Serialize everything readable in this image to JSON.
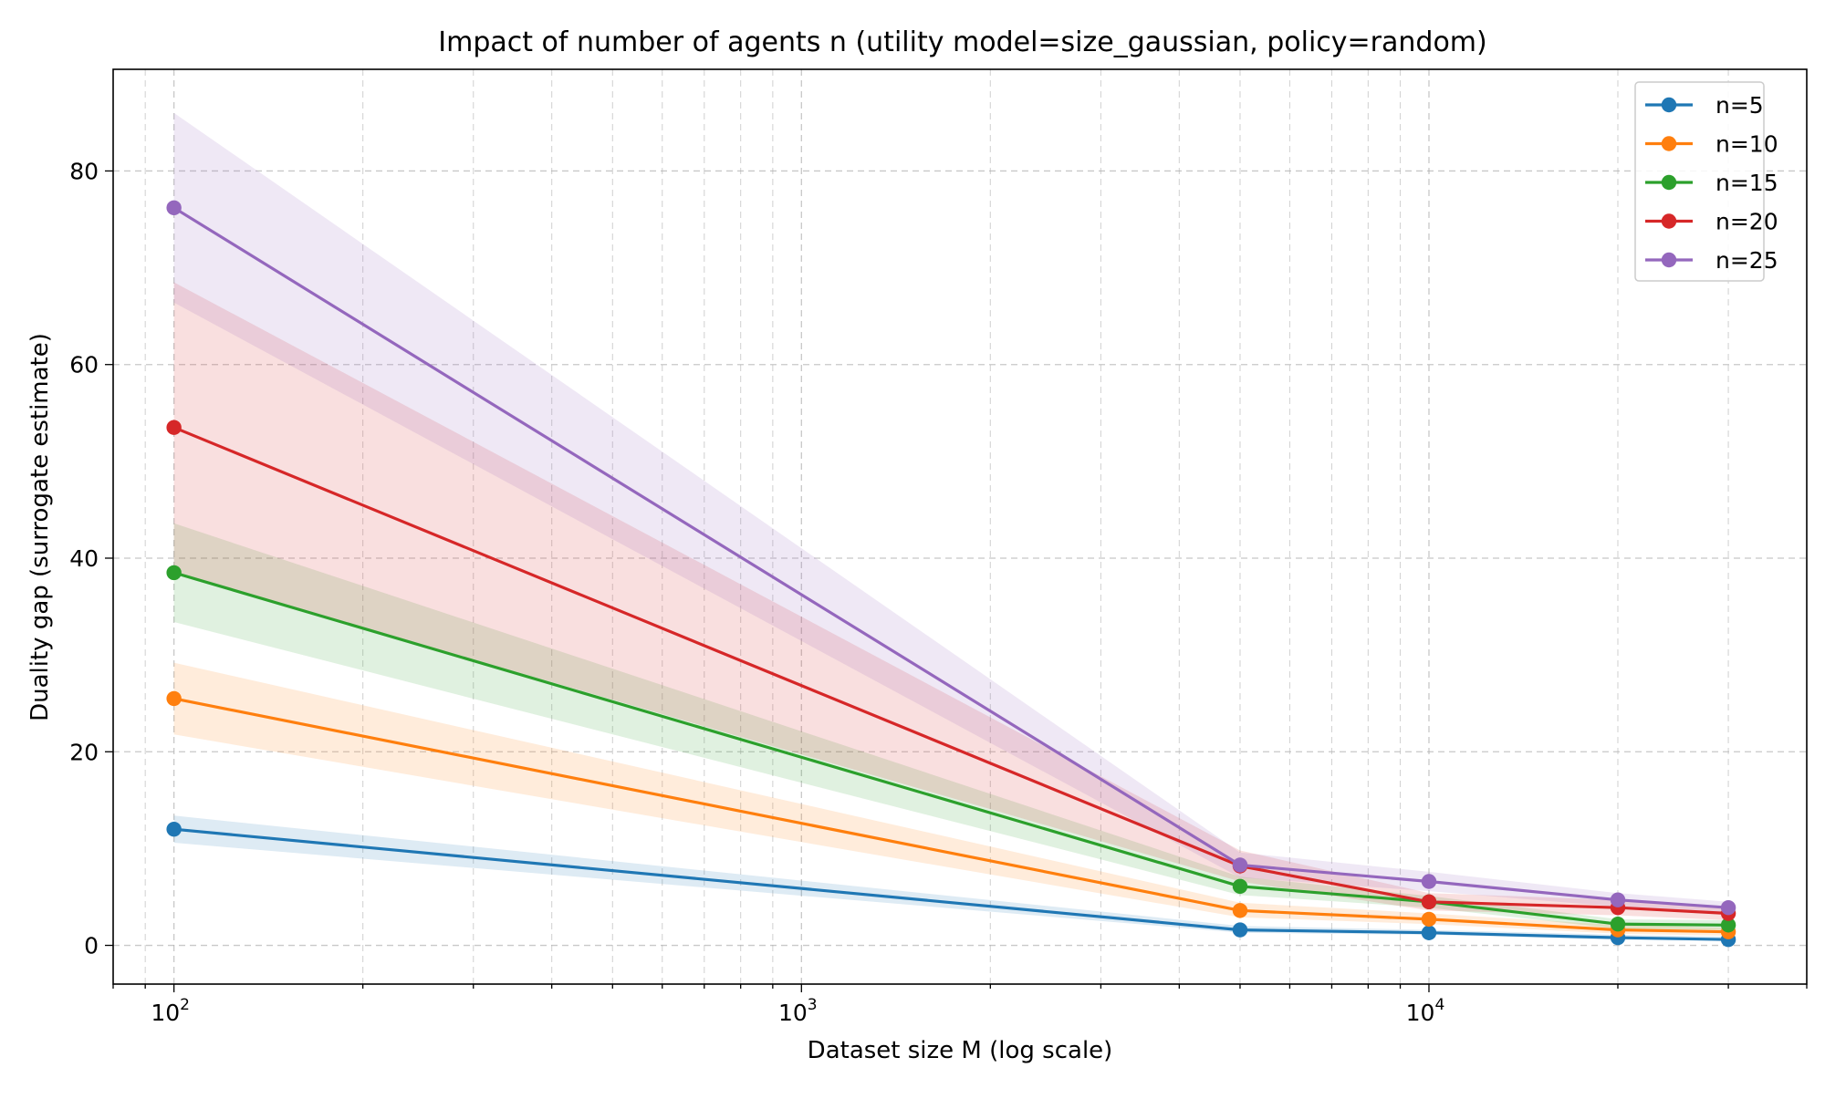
{
  "chart_data": {
    "type": "line",
    "title": "Impact of number of agents n (utility model=size_gaussian, policy=random)",
    "xlabel": "Dataset size M (log scale)",
    "ylabel": "Duality gap (surrogate estimate)",
    "xscale": "log",
    "xlim": [
      80,
      40000
    ],
    "ylim": [
      -4,
      90.5
    ],
    "x": [
      100,
      5000,
      10000,
      20000,
      30000
    ],
    "x_ticks": [
      {
        "value": 100,
        "base": "10",
        "exp": "2"
      },
      {
        "value": 1000,
        "base": "10",
        "exp": "3"
      },
      {
        "value": 10000,
        "base": "10",
        "exp": "4"
      }
    ],
    "y_ticks": [
      0,
      20,
      40,
      60,
      80
    ],
    "y_tick_labels": [
      "0",
      "20",
      "40",
      "60",
      "80"
    ],
    "grid": true,
    "legend_position": "top-right",
    "series": [
      {
        "name": "n=5",
        "color": "#1f77b4",
        "values": [
          12.0,
          1.6,
          1.3,
          0.8,
          0.6
        ],
        "lower": [
          10.6,
          1.3,
          1.1,
          0.6,
          0.5
        ],
        "upper": [
          13.4,
          2.0,
          1.6,
          1.1,
          0.9
        ]
      },
      {
        "name": "n=10",
        "color": "#ff7f0e",
        "values": [
          25.5,
          3.6,
          2.7,
          1.6,
          1.4
        ],
        "lower": [
          21.8,
          2.9,
          2.2,
          1.2,
          1.0
        ],
        "upper": [
          29.2,
          4.4,
          3.3,
          2.1,
          1.8
        ]
      },
      {
        "name": "n=15",
        "color": "#2ca02c",
        "values": [
          38.5,
          6.1,
          4.5,
          2.2,
          2.1
        ],
        "lower": [
          33.4,
          5.2,
          3.9,
          1.7,
          1.6
        ],
        "upper": [
          43.6,
          7.1,
          5.1,
          2.7,
          2.6
        ]
      },
      {
        "name": "n=20",
        "color": "#d62728",
        "values": [
          53.5,
          8.2,
          4.5,
          3.9,
          3.3
        ],
        "lower": [
          38.5,
          6.6,
          3.6,
          3.1,
          2.6
        ],
        "upper": [
          68.5,
          9.8,
          5.4,
          4.7,
          4.0
        ]
      },
      {
        "name": "n=25",
        "color": "#9467bd",
        "values": [
          76.2,
          8.3,
          6.6,
          4.7,
          3.9
        ],
        "lower": [
          66.4,
          7.0,
          5.6,
          4.0,
          3.3
        ],
        "upper": [
          86.0,
          9.6,
          7.6,
          5.4,
          4.5
        ]
      }
    ]
  }
}
